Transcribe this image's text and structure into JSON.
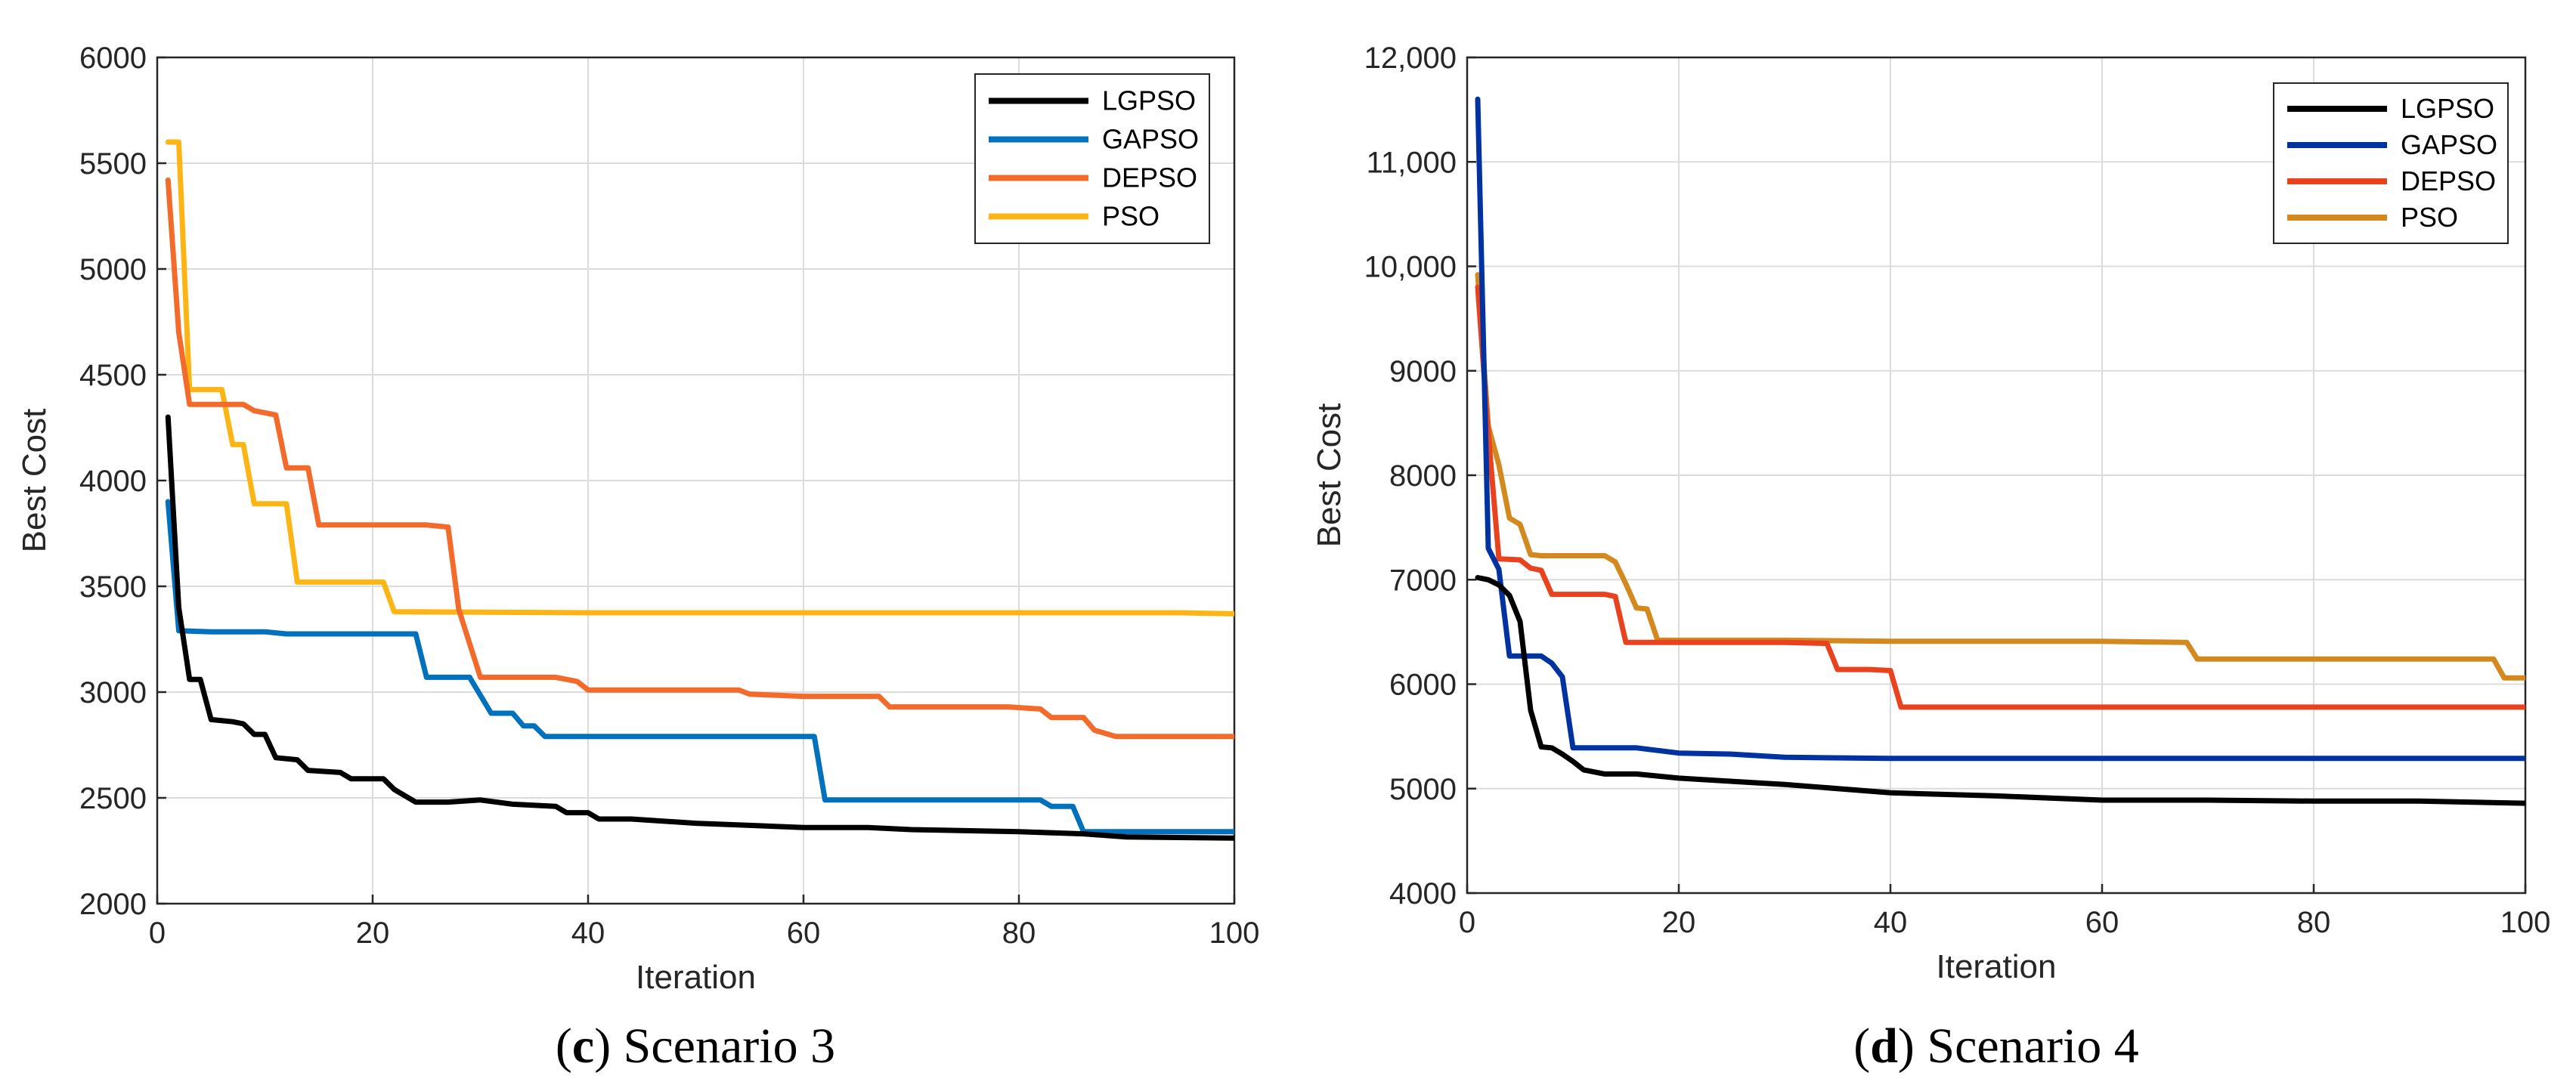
{
  "chart_data": [
    {
      "type": "line",
      "caption_letter": "c",
      "caption_text": "Scenario 3",
      "xlabel": "Iteration",
      "ylabel": "Best Cost",
      "xlim": [
        0,
        100
      ],
      "ylim": [
        2000,
        6000
      ],
      "xticks": [
        0,
        20,
        40,
        60,
        80,
        100
      ],
      "yticks": [
        2000,
        2500,
        3000,
        3500,
        4000,
        4500,
        5000,
        5500,
        6000
      ],
      "ytick_labels": [
        "2000",
        "2500",
        "3000",
        "3500",
        "4000",
        "4500",
        "5000",
        "5500",
        "6000"
      ],
      "grid": true,
      "legend_position": "top-right",
      "series": [
        {
          "name": "LGPSO",
          "color": "#000000",
          "points": [
            [
              1,
              4300
            ],
            [
              2,
              3400
            ],
            [
              3,
              3060
            ],
            [
              4,
              3060
            ],
            [
              5,
              2870
            ],
            [
              7,
              2860
            ],
            [
              8,
              2850
            ],
            [
              9,
              2800
            ],
            [
              10,
              2800
            ],
            [
              11,
              2690
            ],
            [
              13,
              2680
            ],
            [
              14,
              2630
            ],
            [
              17,
              2620
            ],
            [
              18,
              2590
            ],
            [
              21,
              2590
            ],
            [
              22,
              2540
            ],
            [
              24,
              2480
            ],
            [
              27,
              2480
            ],
            [
              30,
              2490
            ],
            [
              33,
              2470
            ],
            [
              37,
              2460
            ],
            [
              38,
              2430
            ],
            [
              40,
              2430
            ],
            [
              41,
              2400
            ],
            [
              44,
              2400
            ],
            [
              50,
              2380
            ],
            [
              55,
              2370
            ],
            [
              60,
              2360
            ],
            [
              66,
              2360
            ],
            [
              70,
              2350
            ],
            [
              75,
              2345
            ],
            [
              80,
              2340
            ],
            [
              86,
              2330
            ],
            [
              90,
              2315
            ],
            [
              100,
              2310
            ]
          ]
        },
        {
          "name": "GAPSO",
          "color": "#0072BD",
          "points": [
            [
              1,
              3900
            ],
            [
              2,
              3290
            ],
            [
              5,
              3285
            ],
            [
              10,
              3285
            ],
            [
              12,
              3275
            ],
            [
              15,
              3275
            ],
            [
              24,
              3275
            ],
            [
              25,
              3070
            ],
            [
              29,
              3070
            ],
            [
              31,
              2900
            ],
            [
              33,
              2900
            ],
            [
              34,
              2840
            ],
            [
              35,
              2840
            ],
            [
              36,
              2790
            ],
            [
              50,
              2790
            ],
            [
              61,
              2790
            ],
            [
              62,
              2490
            ],
            [
              82,
              2490
            ],
            [
              83,
              2460
            ],
            [
              85,
              2460
            ],
            [
              86,
              2340
            ],
            [
              100,
              2340
            ]
          ]
        },
        {
          "name": "DEPSO",
          "color": "#F26B2A",
          "points": [
            [
              1,
              5420
            ],
            [
              2,
              4700
            ],
            [
              3,
              4360
            ],
            [
              8,
              4360
            ],
            [
              9,
              4330
            ],
            [
              11,
              4310
            ],
            [
              12,
              4060
            ],
            [
              14,
              4060
            ],
            [
              15,
              3790
            ],
            [
              20,
              3790
            ],
            [
              25,
              3790
            ],
            [
              27,
              3780
            ],
            [
              28,
              3390
            ],
            [
              30,
              3070
            ],
            [
              37,
              3070
            ],
            [
              39,
              3050
            ],
            [
              40,
              3010
            ],
            [
              54,
              3010
            ],
            [
              55,
              2990
            ],
            [
              60,
              2980
            ],
            [
              67,
              2980
            ],
            [
              68,
              2930
            ],
            [
              79,
              2930
            ],
            [
              82,
              2920
            ],
            [
              83,
              2880
            ],
            [
              86,
              2880
            ],
            [
              87,
              2820
            ],
            [
              89,
              2790
            ],
            [
              100,
              2790
            ]
          ]
        },
        {
          "name": "PSO",
          "color": "#FDB515",
          "points": [
            [
              1,
              5600
            ],
            [
              2,
              5600
            ],
            [
              3,
              4430
            ],
            [
              6,
              4430
            ],
            [
              7,
              4170
            ],
            [
              8,
              4170
            ],
            [
              9,
              3890
            ],
            [
              12,
              3890
            ],
            [
              13,
              3520
            ],
            [
              20,
              3520
            ],
            [
              21,
              3520
            ],
            [
              22,
              3380
            ],
            [
              40,
              3375
            ],
            [
              60,
              3375
            ],
            [
              80,
              3375
            ],
            [
              95,
              3375
            ],
            [
              100,
              3370
            ]
          ]
        }
      ]
    },
    {
      "type": "line",
      "caption_letter": "d",
      "caption_text": "Scenario 4",
      "xlabel": "Iteration",
      "ylabel": "Best Cost",
      "xlim": [
        0,
        100
      ],
      "ylim": [
        4000,
        12000
      ],
      "xticks": [
        0,
        20,
        40,
        60,
        80,
        100
      ],
      "yticks": [
        4000,
        5000,
        6000,
        7000,
        8000,
        9000,
        10000,
        11000,
        12000
      ],
      "ytick_labels": [
        "4000",
        "5000",
        "6000",
        "7000",
        "8000",
        "9000",
        "10,000",
        "11,000",
        "12,000"
      ],
      "grid": true,
      "legend_position": "top-right",
      "series": [
        {
          "name": "LGPSO",
          "color": "#000000",
          "points": [
            [
              1,
              7020
            ],
            [
              2,
              7000
            ],
            [
              3,
              6950
            ],
            [
              4,
              6850
            ],
            [
              5,
              6600
            ],
            [
              6,
              5750
            ],
            [
              7,
              5400
            ],
            [
              8,
              5390
            ],
            [
              9,
              5330
            ],
            [
              10,
              5260
            ],
            [
              11,
              5180
            ],
            [
              13,
              5140
            ],
            [
              16,
              5140
            ],
            [
              20,
              5100
            ],
            [
              25,
              5070
            ],
            [
              30,
              5040
            ],
            [
              40,
              4960
            ],
            [
              50,
              4930
            ],
            [
              60,
              4890
            ],
            [
              70,
              4890
            ],
            [
              80,
              4880
            ],
            [
              90,
              4880
            ],
            [
              100,
              4860
            ]
          ]
        },
        {
          "name": "GAPSO",
          "color": "#0033A0",
          "points": [
            [
              1,
              11600
            ],
            [
              2,
              7300
            ],
            [
              3,
              7100
            ],
            [
              4,
              6270
            ],
            [
              6,
              6270
            ],
            [
              7,
              6270
            ],
            [
              8,
              6200
            ],
            [
              9,
              6070
            ],
            [
              10,
              5390
            ],
            [
              16,
              5390
            ],
            [
              20,
              5340
            ],
            [
              25,
              5330
            ],
            [
              30,
              5300
            ],
            [
              40,
              5290
            ],
            [
              60,
              5290
            ],
            [
              80,
              5290
            ],
            [
              100,
              5290
            ]
          ]
        },
        {
          "name": "DEPSO",
          "color": "#E8431E",
          "points": [
            [
              1,
              9800
            ],
            [
              2,
              8400
            ],
            [
              3,
              7200
            ],
            [
              5,
              7190
            ],
            [
              6,
              7110
            ],
            [
              7,
              7090
            ],
            [
              8,
              6860
            ],
            [
              13,
              6860
            ],
            [
              14,
              6840
            ],
            [
              15,
              6400
            ],
            [
              20,
              6400
            ],
            [
              30,
              6400
            ],
            [
              34,
              6390
            ],
            [
              35,
              6140
            ],
            [
              38,
              6140
            ],
            [
              40,
              6130
            ],
            [
              41,
              5780
            ],
            [
              60,
              5780
            ],
            [
              80,
              5780
            ],
            [
              100,
              5780
            ]
          ]
        },
        {
          "name": "PSO",
          "color": "#D4891E",
          "points": [
            [
              1,
              9920
            ],
            [
              2,
              8470
            ],
            [
              3,
              8100
            ],
            [
              4,
              7590
            ],
            [
              5,
              7530
            ],
            [
              6,
              7240
            ],
            [
              7,
              7230
            ],
            [
              13,
              7230
            ],
            [
              14,
              7170
            ],
            [
              15,
              6960
            ],
            [
              16,
              6730
            ],
            [
              17,
              6720
            ],
            [
              18,
              6420
            ],
            [
              30,
              6420
            ],
            [
              40,
              6410
            ],
            [
              60,
              6410
            ],
            [
              68,
              6400
            ],
            [
              69,
              6240
            ],
            [
              80,
              6240
            ],
            [
              97,
              6240
            ],
            [
              98,
              6060
            ],
            [
              100,
              6060
            ]
          ]
        }
      ]
    }
  ]
}
